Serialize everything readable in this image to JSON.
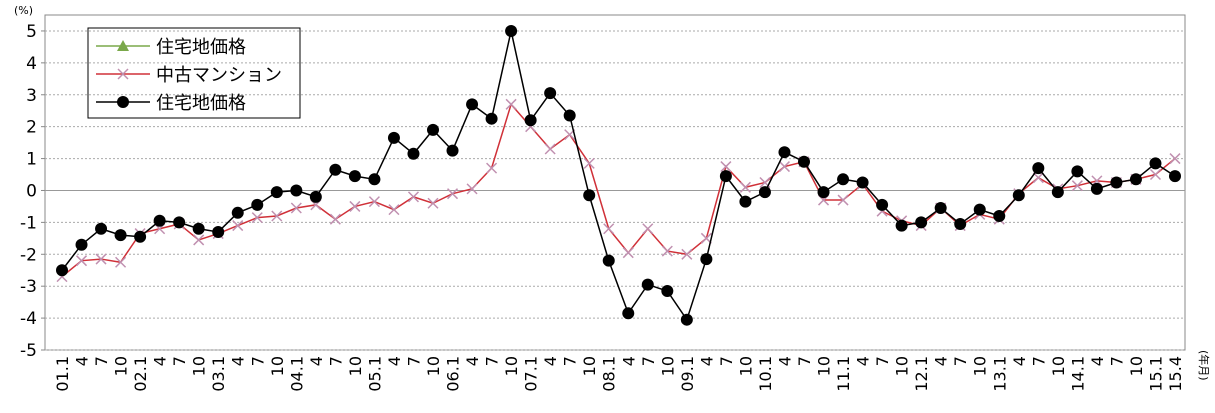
{
  "chart_data": {
    "type": "line",
    "y_unit": "(%)",
    "x_unit": "(年月)",
    "categories": [
      "01.1",
      "4",
      "7",
      "10",
      "02.1",
      "4",
      "7",
      "10",
      "03.1",
      "4",
      "7",
      "10",
      "04.1",
      "4",
      "7",
      "10",
      "05.1",
      "4",
      "7",
      "10",
      "06.1",
      "4",
      "7",
      "10",
      "07.1",
      "4",
      "7",
      "10",
      "08.1",
      "4",
      "7",
      "10",
      "09.1",
      "4",
      "7",
      "10",
      "10.1",
      "4",
      "7",
      "10",
      "11.1",
      "4",
      "7",
      "10",
      "12.1",
      "4",
      "7",
      "10",
      "13.1",
      "4",
      "7",
      "10",
      "14.1",
      "4",
      "7",
      "10",
      "15.1",
      "15.4"
    ],
    "series": [
      {
        "name": "住宅地価格",
        "color": "#7aa84a",
        "marker": "triangle",
        "values": [
          null,
          null,
          null,
          null,
          null,
          null,
          null,
          null,
          null,
          null,
          null,
          null,
          null,
          null,
          null,
          null,
          null,
          null,
          null,
          null,
          null,
          null,
          null,
          null,
          null,
          null,
          null,
          null,
          null,
          null,
          null,
          null,
          null,
          null,
          null,
          null,
          null,
          null,
          null,
          null,
          null,
          null,
          null,
          null,
          null,
          null,
          null,
          null,
          null,
          null,
          null,
          null,
          null,
          null,
          null,
          null,
          null,
          null
        ]
      },
      {
        "name": "中古マンション",
        "color": "#d03038",
        "marker": "x",
        "values": [
          -2.7,
          -2.2,
          -2.15,
          -2.25,
          -1.35,
          -1.2,
          -1.05,
          -1.55,
          -1.35,
          -1.1,
          -0.85,
          -0.8,
          -0.55,
          -0.45,
          -0.9,
          -0.5,
          -0.35,
          -0.6,
          -0.2,
          -0.4,
          -0.1,
          0.05,
          0.7,
          2.7,
          2.0,
          1.3,
          1.75,
          0.85,
          -1.2,
          -1.95,
          -1.2,
          -1.9,
          -2.0,
          -1.5,
          0.75,
          0.1,
          0.25,
          0.75,
          0.9,
          -0.3,
          -0.3,
          0.2,
          -0.65,
          -0.95,
          -1.1,
          -0.55,
          -1.1,
          -0.75,
          -0.9,
          -0.1,
          0.4,
          0.05,
          0.15,
          0.3,
          0.25,
          0.35,
          0.5,
          1.0
        ]
      },
      {
        "name": "住宅地価格",
        "color": "#000000",
        "marker": "circle",
        "values": [
          -2.5,
          -1.7,
          -1.2,
          -1.4,
          -1.45,
          -0.95,
          -1.0,
          -1.2,
          -1.3,
          -0.7,
          -0.45,
          -0.05,
          0.0,
          -0.2,
          0.65,
          0.45,
          0.35,
          1.65,
          1.15,
          1.9,
          1.25,
          2.7,
          2.25,
          5.0,
          2.2,
          3.05,
          2.35,
          -0.15,
          -2.2,
          -3.85,
          -2.95,
          -3.15,
          -4.05,
          -2.15,
          0.45,
          -0.35,
          -0.05,
          1.2,
          0.9,
          -0.05,
          0.35,
          0.25,
          -0.45,
          -1.1,
          -1.0,
          -0.55,
          -1.05,
          -0.6,
          -0.8,
          -0.15,
          0.7,
          -0.05,
          0.6,
          0.05,
          0.25,
          0.35,
          0.85,
          0.45
        ]
      }
    ],
    "ylim": [
      -5,
      5.5
    ],
    "yticks": [
      -5,
      -4,
      -3,
      -2,
      -1,
      0,
      1,
      2,
      3,
      4,
      5
    ],
    "grid": true
  }
}
